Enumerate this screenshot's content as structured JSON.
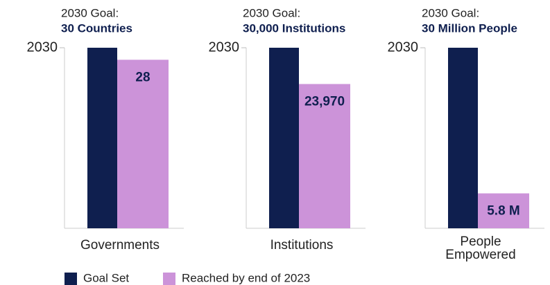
{
  "chart_data": [
    {
      "type": "bar",
      "title": "2030 Goal:",
      "subtitle": "30 Countries",
      "categories": [
        "Governments"
      ],
      "series": [
        {
          "name": "Goal Set",
          "color": "#0f1f4f",
          "values": [
            30
          ]
        },
        {
          "name": "Reached by end of 2023",
          "color": "#cc93d9",
          "values": [
            28
          ]
        }
      ],
      "ylim": [
        0,
        30
      ],
      "yticks": [
        {
          "value": 30,
          "label": "2030"
        }
      ]
    },
    {
      "type": "bar",
      "title": "2030 Goal:",
      "subtitle": "30,000 Institutions",
      "categories": [
        "Institutions"
      ],
      "series": [
        {
          "values": [
            30000
          ]
        },
        {
          "values": [
            23970
          ],
          "value_labels": [
            "23,970"
          ]
        }
      ],
      "ylim": [
        0,
        30000
      ],
      "yticks": [
        {
          "value": 30000,
          "label": "2030"
        }
      ]
    },
    {
      "type": "bar",
      "title": "2030 Goal:",
      "subtitle": "30 Million People",
      "categories": [
        "People Empowered"
      ],
      "series": [
        {
          "values": [
            30
          ]
        },
        {
          "values": [
            5.8
          ],
          "value_labels": [
            "5.8 M"
          ]
        }
      ],
      "ylim": [
        0,
        30
      ],
      "yticks": [
        {
          "value": 30,
          "label": "2030"
        }
      ]
    }
  ]
}
